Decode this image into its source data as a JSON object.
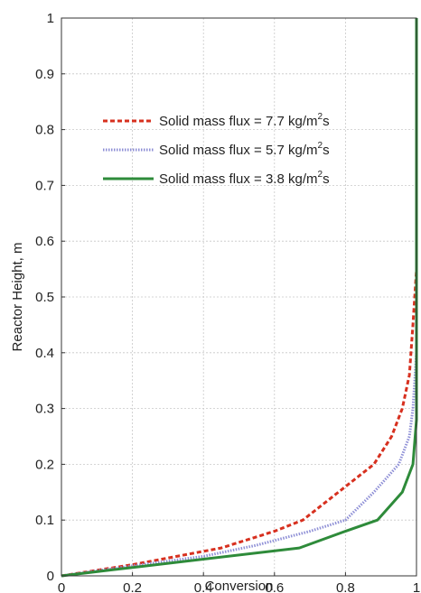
{
  "chart_data": {
    "type": "line",
    "title": "",
    "xlabel": "Conversion",
    "ylabel": "Reactor Height, m",
    "xlim": [
      0,
      1
    ],
    "ylim": [
      0,
      1
    ],
    "xticks": [
      "0",
      "0.2",
      "0.4",
      "0.6",
      "0.8",
      "1"
    ],
    "yticks": [
      "0",
      "0.1",
      "0.2",
      "0.3",
      "0.4",
      "0.5",
      "0.6",
      "0.7",
      "0.8",
      "0.9",
      "1"
    ],
    "grid": true,
    "legend_position": "top-right",
    "series": [
      {
        "name_prefix": "Solid mass flux = 7.7 kg/m",
        "name_sup": "2",
        "name_suffix": "s",
        "color": "#d7301f",
        "style": "dashed",
        "points": [
          [
            0,
            0
          ],
          [
            0.2,
            0.02
          ],
          [
            0.45,
            0.05
          ],
          [
            0.6,
            0.08
          ],
          [
            0.68,
            0.1
          ],
          [
            0.78,
            0.15
          ],
          [
            0.88,
            0.2
          ],
          [
            0.93,
            0.25
          ],
          [
            0.96,
            0.3
          ],
          [
            0.98,
            0.36
          ],
          [
            0.99,
            0.45
          ],
          [
            1.0,
            0.55
          ],
          [
            1.0,
            0.65
          ]
        ]
      },
      {
        "name_prefix": "Solid mass flux = 5.7 kg/m",
        "name_sup": "2",
        "name_suffix": "s",
        "color": "#8e8fd6",
        "style": "dotted",
        "points": [
          [
            0,
            0
          ],
          [
            0.2,
            0.018
          ],
          [
            0.4,
            0.035
          ],
          [
            0.55,
            0.055
          ],
          [
            0.7,
            0.08
          ],
          [
            0.8,
            0.1
          ],
          [
            0.88,
            0.15
          ],
          [
            0.95,
            0.2
          ],
          [
            0.98,
            0.25
          ],
          [
            0.99,
            0.3
          ],
          [
            1.0,
            0.4
          ]
        ]
      },
      {
        "name_prefix": "Solid mass flux = 3.8 kg/m",
        "name_sup": "2",
        "name_suffix": "s",
        "color": "#2e8b3a",
        "style": "solid",
        "points": [
          [
            0,
            0
          ],
          [
            0.2,
            0.015
          ],
          [
            0.4,
            0.03
          ],
          [
            0.67,
            0.05
          ],
          [
            0.8,
            0.08
          ],
          [
            0.89,
            0.1
          ],
          [
            0.96,
            0.15
          ],
          [
            0.99,
            0.2
          ],
          [
            1.0,
            0.28
          ],
          [
            1.0,
            1.0
          ]
        ]
      }
    ]
  }
}
